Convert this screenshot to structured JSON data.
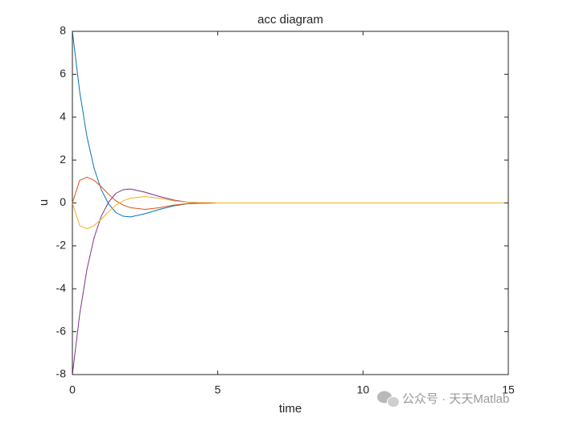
{
  "chart_data": {
    "type": "line",
    "title": "acc diagram",
    "xlabel": "time",
    "ylabel": "u",
    "watermark": "公众号 · 天天Matlab",
    "x": [
      0,
      0.25,
      0.5,
      0.75,
      1,
      1.25,
      1.5,
      1.75,
      2,
      2.5,
      3,
      3.5,
      4,
      5,
      6,
      8,
      10,
      12,
      15
    ],
    "series": [
      {
        "color": "#0072bd",
        "values": [
          8,
          5.2,
          3.1,
          1.6,
          0.6,
          -0.05,
          -0.45,
          -0.62,
          -0.65,
          -0.5,
          -0.3,
          -0.13,
          -0.03,
          0,
          0,
          0,
          0,
          0,
          0
        ]
      },
      {
        "color": "#7e2f8e",
        "values": [
          -8,
          -5.2,
          -3.1,
          -1.6,
          -0.6,
          0.05,
          0.45,
          0.62,
          0.65,
          0.5,
          0.3,
          0.13,
          0.03,
          0,
          0,
          0,
          0,
          0,
          0
        ]
      },
      {
        "color": "#d95319",
        "values": [
          0,
          1.05,
          1.2,
          1.05,
          0.75,
          0.4,
          0.1,
          -0.1,
          -0.22,
          -0.3,
          -0.22,
          -0.1,
          -0.03,
          0,
          0,
          0,
          0,
          0,
          0
        ]
      },
      {
        "color": "#edb120",
        "values": [
          0,
          -1.05,
          -1.2,
          -1.05,
          -0.75,
          -0.4,
          -0.1,
          0.1,
          0.22,
          0.3,
          0.22,
          0.1,
          0.03,
          0,
          0,
          0,
          0,
          0,
          0
        ]
      }
    ],
    "xlim": [
      0,
      15
    ],
    "xticks": [
      0,
      5,
      10,
      15
    ],
    "ylim": [
      -8,
      8
    ],
    "yticks": [
      -8,
      -6,
      -4,
      -2,
      0,
      2,
      4,
      6,
      8
    ],
    "grid": false
  }
}
